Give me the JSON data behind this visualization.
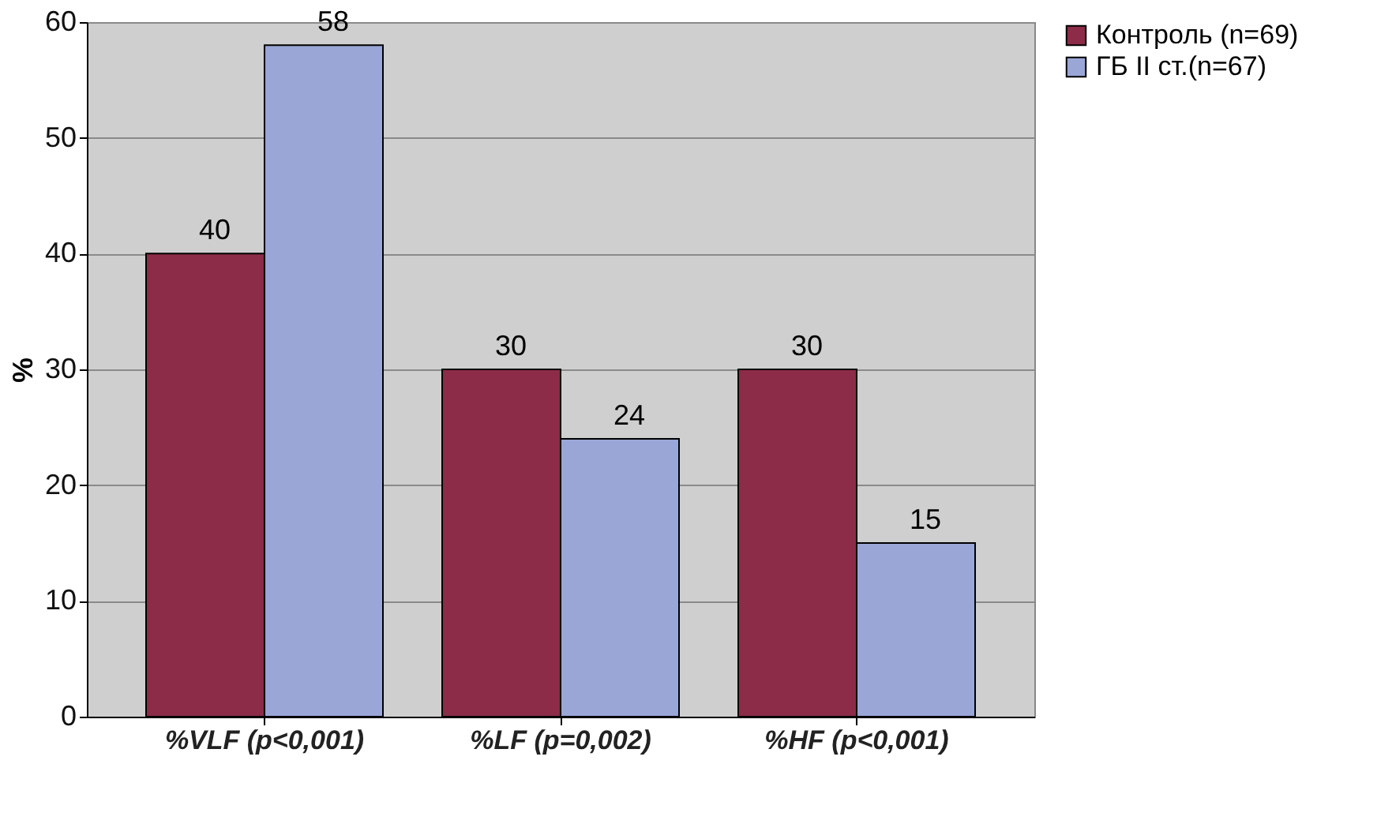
{
  "chart_data": {
    "type": "bar",
    "ylabel": "%",
    "categories": [
      "%VLF (p<0,001)",
      "%LF (p=0,002)",
      "%HF (p<0,001)"
    ],
    "series": [
      {
        "name": "Контроль (n=69)",
        "color": "#8c2c48",
        "values": [
          40,
          30,
          30
        ]
      },
      {
        "name": "ГБ II ст.(n=67)",
        "color": "#9aa6d6",
        "values": [
          58,
          24,
          15
        ]
      }
    ],
    "ylim": [
      0,
      60
    ],
    "yticks": [
      0,
      10,
      20,
      30,
      40,
      50,
      60
    ],
    "grid": "y",
    "legend": "right",
    "data_labels": true
  }
}
